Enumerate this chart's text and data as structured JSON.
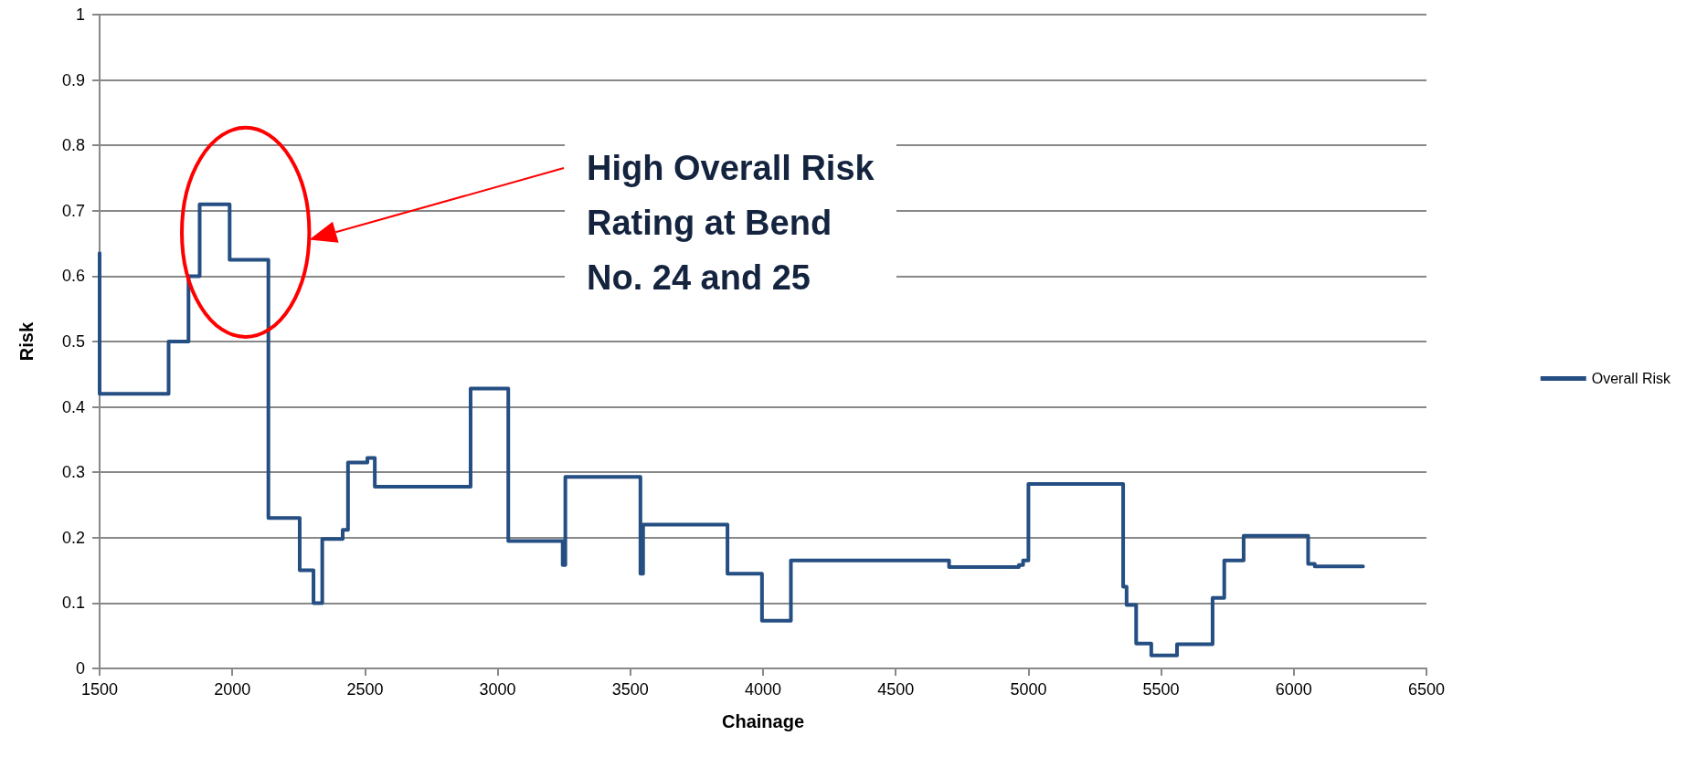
{
  "chart_data": {
    "type": "step",
    "xlabel": "Chainage",
    "ylabel": "Risk",
    "xlim": [
      1500,
      6500
    ],
    "xticks": [
      1500,
      2000,
      2500,
      3000,
      3500,
      4000,
      4500,
      5000,
      5500,
      6000,
      6500
    ],
    "ylim": [
      0,
      1
    ],
    "yticks": [
      0,
      0.1,
      0.2,
      0.3,
      0.4,
      0.5,
      0.6,
      0.7,
      0.8,
      0.9,
      1
    ],
    "grid": "y",
    "legend": "right",
    "marker": "none",
    "line_style": "solid",
    "annotations": [
      "High Overall Risk\nRating at Bend\nNo. 24 and 25"
    ],
    "series": [
      {
        "name": "Overall Risk",
        "color": "#254e82",
        "x": [
          1500,
          1500,
          1760,
          1835,
          1877,
          1990,
          2136,
          2254,
          2306,
          2339,
          2416,
          2436,
          2509,
          2537,
          2898,
          3040,
          3245,
          3255,
          3538,
          3548,
          3866,
          3996,
          4105,
          4701,
          4964,
          4980,
          5000,
          5357,
          5370,
          5406,
          5463,
          5560,
          5694,
          5738,
          5811,
          6054,
          6079,
          6261
        ],
        "values": [
          0.635,
          0.42,
          0.5,
          0.6,
          0.71,
          0.625,
          0.23,
          0.15,
          0.1,
          0.198,
          0.212,
          0.315,
          0.322,
          0.278,
          0.428,
          0.195,
          0.158,
          0.293,
          0.145,
          0.22,
          0.145,
          0.073,
          0.165,
          0.155,
          0.158,
          0.165,
          0.282,
          0.125,
          0.097,
          0.038,
          0.02,
          0.037,
          0.108,
          0.165,
          0.203,
          0.16,
          0.156,
          0.156
        ]
      }
    ]
  }
}
